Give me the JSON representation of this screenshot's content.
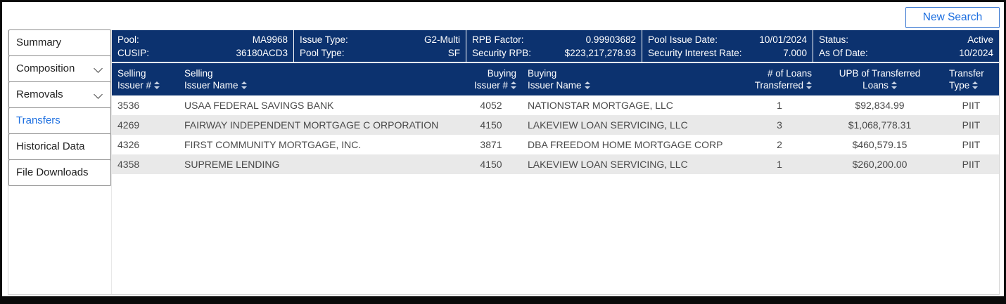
{
  "colors": {
    "navy": "#0c326f",
    "accent_blue": "#1d6fe0",
    "row_alt": "#e9e9e9"
  },
  "toolbar": {
    "new_search_label": "New Search"
  },
  "sidebar": {
    "items": [
      {
        "label": "Summary",
        "chevron": false,
        "active": false
      },
      {
        "label": "Composition",
        "chevron": true,
        "active": false
      },
      {
        "label": "Removals",
        "chevron": true,
        "active": false
      },
      {
        "label": "Transfers",
        "chevron": false,
        "active": true
      },
      {
        "label": "Historical Data",
        "chevron": false,
        "active": false
      },
      {
        "label": "File Downloads",
        "chevron": false,
        "active": false
      }
    ]
  },
  "info_bar": {
    "sections": [
      {
        "rows": [
          {
            "label": "Pool:",
            "value": "MA9968"
          },
          {
            "label": "CUSIP:",
            "value": "36180ACD3"
          }
        ]
      },
      {
        "rows": [
          {
            "label": "Issue Type:",
            "value": "G2-Multi"
          },
          {
            "label": "Pool Type:",
            "value": "SF"
          }
        ]
      },
      {
        "rows": [
          {
            "label": "RPB Factor:",
            "value": "0.99903682"
          },
          {
            "label": "Security RPB:",
            "value": "$223,217,278.93"
          }
        ]
      },
      {
        "rows": [
          {
            "label": "Pool Issue Date:",
            "value": "10/01/2024"
          },
          {
            "label": "Security Interest Rate:",
            "value": "7.000"
          }
        ]
      },
      {
        "rows": [
          {
            "label": "Status:",
            "value": "Active"
          },
          {
            "label": "As Of Date:",
            "value": "10/2024"
          }
        ]
      }
    ]
  },
  "table": {
    "columns": [
      {
        "key": "selling-issuer-number",
        "line1": "Selling",
        "line2": "Issuer #",
        "sortable": true
      },
      {
        "key": "selling-issuer-name",
        "line1": "Selling",
        "line2": "Issuer Name",
        "sortable": true
      },
      {
        "key": "buying-issuer-number",
        "line1": "Buying",
        "line2": "Issuer #",
        "sortable": true
      },
      {
        "key": "buying-issuer-name",
        "line1": "Buying",
        "line2": "Issuer Name",
        "sortable": true
      },
      {
        "key": "num-loans-transferred",
        "line1": "# of Loans",
        "line2": "Transferred",
        "sortable": true
      },
      {
        "key": "upb-of-transferred-loans",
        "line1": "UPB of Transferred",
        "line2": "Loans",
        "sortable": true
      },
      {
        "key": "transfer-type",
        "line1": "Transfer",
        "line2": "Type",
        "sortable": true
      }
    ],
    "rows": [
      [
        "3536",
        "USAA FEDERAL SAVINGS BANK",
        "4052",
        "NATIONSTAR MORTGAGE, LLC",
        "1",
        "$92,834.99",
        "PIIT"
      ],
      [
        "4269",
        "FAIRWAY INDEPENDENT MORTGAGE C ORPORATION",
        "4150",
        "LAKEVIEW LOAN SERVICING, LLC",
        "3",
        "$1,068,778.31",
        "PIIT"
      ],
      [
        "4326",
        "FIRST COMMUNITY MORTGAGE, INC.",
        "3871",
        "DBA FREEDOM HOME MORTGAGE CORP",
        "2",
        "$460,579.15",
        "PIIT"
      ],
      [
        "4358",
        "SUPREME LENDING",
        "4150",
        "LAKEVIEW LOAN SERVICING, LLC",
        "1",
        "$260,200.00",
        "PIIT"
      ]
    ]
  }
}
